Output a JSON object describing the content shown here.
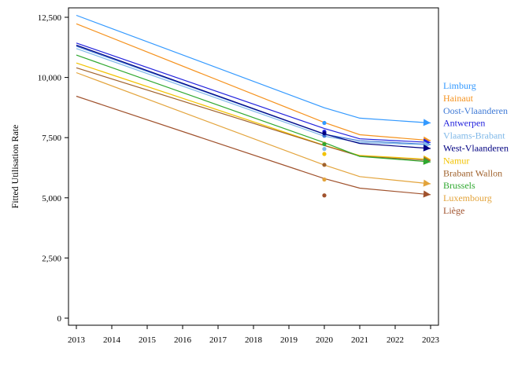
{
  "chart_data": {
    "type": "line",
    "title": "",
    "xlabel": "",
    "ylabel": "Fitted Utilisation Rate",
    "x": [
      2013,
      2014,
      2015,
      2016,
      2017,
      2018,
      2019,
      2020,
      2021,
      2022,
      2023
    ],
    "x_tick_labels": [
      "2013",
      "2014",
      "2015",
      "2016",
      "2017",
      "2018",
      "2019",
      "2020",
      "2021",
      "2022",
      "2023"
    ],
    "ylim": [
      -300,
      13000
    ],
    "y_ticks": [
      0,
      2500,
      5000,
      7500,
      10000,
      12500
    ],
    "y_tick_labels": [
      "0",
      "2,500",
      "5,000",
      "7,500",
      "10,000",
      "12,500"
    ],
    "grid": false,
    "legend": "right",
    "fitted_x": [
      2013,
      2020,
      2021,
      2023
    ],
    "series": [
      {
        "name": "Limburg",
        "color": "#3399ff",
        "fitted": [
          12580,
          8740,
          8310,
          8110
        ],
        "observed_2020": 8110
      },
      {
        "name": "Hainaut",
        "color": "#f5921e",
        "fitted": [
          12230,
          8130,
          7620,
          7380
        ],
        "observed_2020": 7250
      },
      {
        "name": "Oost-Vlaanderen",
        "color": "#3f7ad6",
        "fitted": [
          11300,
          7640,
          7370,
          7220
        ],
        "observed_2020": 7580
      },
      {
        "name": "Antwerpen",
        "color": "#2222dd",
        "fitted": [
          11430,
          7880,
          7450,
          7300
        ],
        "observed_2020": 7750
      },
      {
        "name": "Vlaams-Brabant",
        "color": "#7fb8e8",
        "fitted": [
          11200,
          7560,
          7300,
          7200
        ],
        "observed_2020": 7030
      },
      {
        "name": "West-Vlaanderen",
        "color": "#000080",
        "fitted": [
          11340,
          7650,
          7260,
          7050
        ],
        "observed_2020": 7680
      },
      {
        "name": "Namur",
        "color": "#f2c200",
        "fitted": [
          10600,
          7180,
          6760,
          6600
        ],
        "observed_2020": 6820
      },
      {
        "name": "Brabant Wallon",
        "color": "#a0622d",
        "fitted": [
          10400,
          7170,
          6730,
          6550
        ],
        "observed_2020": 6370
      },
      {
        "name": "Brussels",
        "color": "#2fa82f",
        "fitted": [
          10930,
          7290,
          6720,
          6490
        ],
        "observed_2020": 7230
      },
      {
        "name": "Luxembourg",
        "color": "#e3a43c",
        "fitted": [
          10200,
          6360,
          5880,
          5580
        ],
        "observed_2020": 5760
      },
      {
        "name": "Liège",
        "color": "#a0522d",
        "fitted": [
          9220,
          5800,
          5400,
          5130
        ],
        "observed_2020": 5100
      }
    ]
  }
}
